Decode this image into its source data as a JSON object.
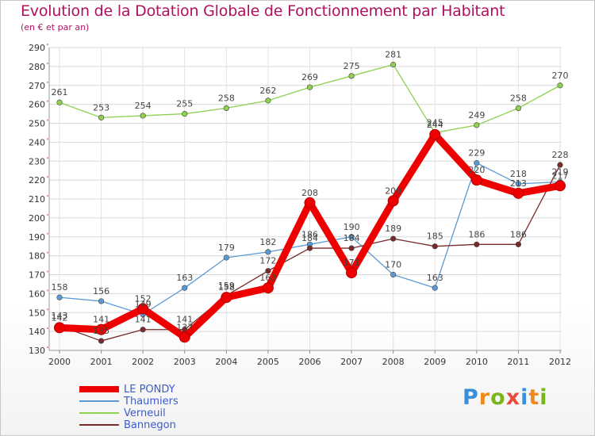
{
  "header": {
    "title": "Evolution de la Dotation Globale de Fonctionnement par Habitant",
    "subtitle": "(en € et par an)"
  },
  "logo": {
    "text": "Proxiti"
  },
  "colors": {
    "title": "#b01060",
    "legend_text": "#3a5bd0",
    "grid": "#d8d8d8"
  },
  "chart_data": {
    "type": "line",
    "title": "Evolution de la Dotation Globale de Fonctionnement par Habitant",
    "subtitle": "(en € et par an)",
    "xlabel": "",
    "ylabel": "",
    "ylim": [
      130,
      290
    ],
    "ytick_step": 10,
    "grid": true,
    "legend_position": "bottom-left",
    "x": [
      "2000",
      "2001",
      "2002",
      "2003",
      "2004",
      "2005",
      "2006",
      "2007",
      "2008",
      "2009",
      "2010",
      "2011",
      "2012"
    ],
    "series": [
      {
        "name": "LE PONDY",
        "color": "#ee0000",
        "emphasis": true,
        "values": [
          142,
          141,
          152,
          137,
          158,
          163,
          208,
          171,
          209,
          244,
          220,
          213,
          217
        ],
        "labels": [
          "142",
          "141",
          "152",
          "137",
          "158",
          "163",
          "208",
          "171",
          "209",
          "244",
          "220",
          "213",
          "217"
        ]
      },
      {
        "name": "Thaumiers",
        "color": "#5b9bd5",
        "emphasis": false,
        "values": [
          158,
          156,
          149,
          163,
          179,
          182,
          186,
          190,
          170,
          163,
          229,
          218,
          219
        ],
        "labels": [
          "158",
          "156",
          "149",
          "163",
          "179",
          "182",
          "186",
          "190",
          "170",
          "163",
          "229",
          "218",
          "219"
        ]
      },
      {
        "name": "Verneuil",
        "color": "#8ed14f",
        "emphasis": false,
        "values": [
          261,
          253,
          254,
          255,
          258,
          262,
          269,
          275,
          281,
          245,
          249,
          258,
          270
        ],
        "labels": [
          "261",
          "253",
          "254",
          "255",
          "258",
          "262",
          "269",
          "275",
          "281",
          "245",
          "249",
          "258",
          "270"
        ]
      },
      {
        "name": "Bannegon",
        "color": "#7a2a2a",
        "emphasis": false,
        "values": [
          143,
          135,
          141,
          141,
          159,
          172,
          184,
          184,
          189,
          185,
          186,
          186,
          228
        ],
        "labels": [
          "143",
          "135",
          "141",
          "141",
          "159",
          "172",
          "184",
          "184",
          "189",
          "185",
          "186",
          "186",
          "228"
        ]
      }
    ]
  }
}
